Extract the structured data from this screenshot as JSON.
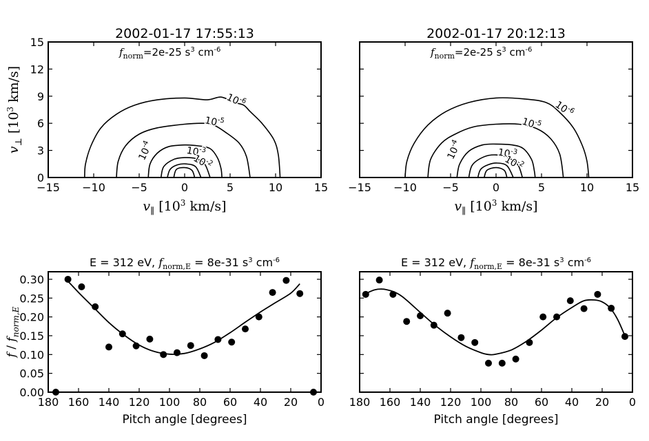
{
  "chart_data": [
    {
      "type": "contour",
      "title": "2002-01-17 17:55:13",
      "annotation": {
        "f": "f",
        "sub": "norm",
        "rest": "=2e-25 s",
        "exp1": "3",
        "rest2": " cm",
        "exp2": "-6"
      },
      "xlabel": {
        "sym": "v",
        "sub": "∥",
        "unit": "[10",
        "unit_exp": "3",
        "unit_rest": "  km/s]"
      },
      "ylabel": {
        "sym": "v",
        "sub": "⊥",
        "unit": "[10",
        "unit_exp": "3",
        "unit_rest": "  km/s]"
      },
      "xlim": [
        -15,
        15
      ],
      "ylim": [
        0,
        15
      ],
      "xticks": [
        "−15",
        "−10",
        "−5",
        "0",
        "5",
        "10",
        "15"
      ],
      "yticks": [
        "0",
        "3",
        "6",
        "9",
        "12",
        "15"
      ],
      "contours": [
        {
          "level": "10^-6",
          "base": "10",
          "exp": "-6",
          "points": [
            [
              -11.0,
              0
            ],
            [
              -10.9,
              1.5
            ],
            [
              -10.3,
              3.5
            ],
            [
              -9.2,
              5.5
            ],
            [
              -7.5,
              7.0
            ],
            [
              -5.5,
              8.0
            ],
            [
              -3.0,
              8.6
            ],
            [
              0.0,
              8.8
            ],
            [
              2.5,
              8.6
            ],
            [
              4.0,
              8.9
            ],
            [
              5.5,
              8.3
            ],
            [
              6.5,
              8.0
            ],
            [
              7.2,
              7.3
            ],
            [
              8.5,
              6.0
            ],
            [
              9.8,
              4.2
            ],
            [
              10.3,
              2.5
            ],
            [
              10.5,
              0
            ]
          ]
        },
        {
          "level": "10^-5",
          "base": "10",
          "exp": "-5",
          "points": [
            [
              -7.5,
              0
            ],
            [
              -7.3,
              1.8
            ],
            [
              -6.5,
              3.5
            ],
            [
              -5.0,
              4.8
            ],
            [
              -3.0,
              5.5
            ],
            [
              0.0,
              5.9
            ],
            [
              2.0,
              6.0
            ],
            [
              3.2,
              5.8
            ],
            [
              4.5,
              5.0
            ],
            [
              6.0,
              3.8
            ],
            [
              6.8,
              2.3
            ],
            [
              7.2,
              0
            ]
          ]
        },
        {
          "level": "10^-4",
          "base": "10",
          "exp": "-4",
          "points": [
            [
              -4.0,
              0
            ],
            [
              -3.8,
              1.5
            ],
            [
              -3.0,
              2.7
            ],
            [
              -1.8,
              3.4
            ],
            [
              0.0,
              3.6
            ],
            [
              1.5,
              3.5
            ],
            [
              2.8,
              3.2
            ],
            [
              3.6,
              2.2
            ],
            [
              4.0,
              1.0
            ],
            [
              4.1,
              0
            ]
          ]
        },
        {
          "level": "10^-3",
          "base": "10",
          "exp": "-3",
          "points": [
            [
              -2.6,
              0
            ],
            [
              -2.3,
              1.2
            ],
            [
              -1.2,
              2.0
            ],
            [
              0.0,
              2.2
            ],
            [
              1.2,
              2.1
            ],
            [
              2.2,
              1.5
            ],
            [
              2.8,
              0
            ]
          ]
        },
        {
          "level": "10^-2",
          "base": "10",
          "exp": "-2",
          "points": [
            [
              -1.9,
              0
            ],
            [
              -1.6,
              0.9
            ],
            [
              -0.8,
              1.4
            ],
            [
              0.2,
              1.5
            ],
            [
              1.2,
              1.2
            ],
            [
              1.8,
              0
            ]
          ]
        },
        {
          "level": "",
          "base": "",
          "exp": "",
          "points": [
            [
              -1.2,
              0
            ],
            [
              -0.9,
              0.9
            ],
            [
              0.0,
              1.1
            ],
            [
              0.8,
              0.8
            ],
            [
              1.1,
              0
            ]
          ]
        }
      ],
      "labels": [
        {
          "base": "10",
          "exp": "-6",
          "x": 5.5,
          "y": 8.2,
          "rot": 25
        },
        {
          "base": "10",
          "exp": "-5",
          "x": 3.2,
          "y": 5.8,
          "rot": 12
        },
        {
          "base": "10",
          "exp": "-4",
          "x": -4.0,
          "y": 2.8,
          "rot": -65
        },
        {
          "base": "10",
          "exp": "-3",
          "x": 1.2,
          "y": 2.5,
          "rot": 10
        },
        {
          "base": "10",
          "exp": "-2",
          "x": 1.8,
          "y": 1.4,
          "rot": 30
        }
      ]
    },
    {
      "type": "contour",
      "title": "2002-01-17 20:12:13",
      "annotation": {
        "f": "f",
        "sub": "norm",
        "rest": "=2e-25 s",
        "exp1": "3",
        "rest2": " cm",
        "exp2": "-6"
      },
      "xlabel": {
        "sym": "v",
        "sub": "∥",
        "unit": "[10",
        "unit_exp": "3",
        "unit_rest": "  km/s]"
      },
      "xlim": [
        -15,
        15
      ],
      "ylim": [
        0,
        15
      ],
      "xticks": [
        "−15",
        "−10",
        "−5",
        "0",
        "5",
        "10",
        "15"
      ],
      "contours": [
        {
          "level": "10^-6",
          "base": "10",
          "exp": "-6",
          "points": [
            [
              -10.0,
              0
            ],
            [
              -9.8,
              1.8
            ],
            [
              -9.0,
              3.8
            ],
            [
              -7.5,
              5.8
            ],
            [
              -5.5,
              7.3
            ],
            [
              -3.0,
              8.3
            ],
            [
              0.0,
              8.8
            ],
            [
              3.0,
              8.7
            ],
            [
              5.5,
              8.3
            ],
            [
              7.0,
              7.2
            ],
            [
              8.5,
              5.5
            ],
            [
              9.5,
              3.5
            ],
            [
              10.0,
              1.8
            ],
            [
              10.2,
              0
            ]
          ]
        },
        {
          "level": "10^-5",
          "base": "10",
          "exp": "-5",
          "points": [
            [
              -7.5,
              0
            ],
            [
              -7.2,
              2.0
            ],
            [
              -6.0,
              3.8
            ],
            [
              -4.5,
              4.8
            ],
            [
              -2.5,
              5.6
            ],
            [
              0.0,
              5.9
            ],
            [
              2.5,
              5.9
            ],
            [
              4.5,
              5.4
            ],
            [
              6.0,
              4.3
            ],
            [
              7.0,
              2.6
            ],
            [
              7.4,
              0
            ]
          ]
        },
        {
          "level": "10^-4",
          "base": "10",
          "exp": "-4",
          "points": [
            [
              -4.3,
              0
            ],
            [
              -4.0,
              1.5
            ],
            [
              -3.0,
              2.9
            ],
            [
              -1.5,
              3.6
            ],
            [
              0.0,
              3.7
            ],
            [
              1.8,
              3.6
            ],
            [
              3.0,
              3.2
            ],
            [
              3.9,
              2.0
            ],
            [
              4.2,
              0.8
            ],
            [
              4.3,
              0
            ]
          ]
        },
        {
          "level": "10^-3",
          "base": "10",
          "exp": "-3",
          "points": [
            [
              -3.0,
              0
            ],
            [
              -2.6,
              1.4
            ],
            [
              -1.3,
              2.3
            ],
            [
              0.0,
              2.5
            ],
            [
              1.3,
              2.2
            ],
            [
              2.4,
              1.4
            ],
            [
              2.9,
              0
            ]
          ]
        },
        {
          "level": "10^-2",
          "base": "10",
          "exp": "-2",
          "points": [
            [
              -2.0,
              0
            ],
            [
              -1.7,
              0.9
            ],
            [
              -0.9,
              1.4
            ],
            [
              0.1,
              1.6
            ],
            [
              1.2,
              1.3
            ],
            [
              1.9,
              0
            ]
          ]
        },
        {
          "level": "",
          "base": "",
          "exp": "",
          "points": [
            [
              -1.3,
              0
            ],
            [
              -1.0,
              0.8
            ],
            [
              0.0,
              1.1
            ],
            [
              0.9,
              0.8
            ],
            [
              1.2,
              0
            ]
          ]
        }
      ],
      "labels": [
        {
          "base": "10",
          "exp": "-6",
          "x": 7.3,
          "y": 7.3,
          "rot": 35
        },
        {
          "base": "10",
          "exp": "-5",
          "x": 3.8,
          "y": 5.6,
          "rot": 18
        },
        {
          "base": "10",
          "exp": "-4",
          "x": -4.3,
          "y": 2.9,
          "rot": -65
        },
        {
          "base": "10",
          "exp": "-3",
          "x": 1.2,
          "y": 2.3,
          "rot": 10
        },
        {
          "base": "10",
          "exp": "-2",
          "x": 1.8,
          "y": 1.3,
          "rot": 30
        }
      ]
    },
    {
      "type": "scatter",
      "title": {
        "pre": "E = 312 eV, ",
        "f": "f",
        "sub": "norm,E",
        "rest": " = 8e-31 s",
        "exp1": "3",
        "rest2": " cm",
        "exp2": "-6"
      },
      "xlabel": "Pitch angle [degrees]",
      "ylabel": {
        "f1": "f",
        "slash": " / ",
        "f2": "f",
        "sub": "norm,E"
      },
      "xlim": [
        180,
        0
      ],
      "ylim": [
        0,
        0.32
      ],
      "xticks": [
        "180",
        "160",
        "140",
        "120",
        "100",
        "80",
        "60",
        "40",
        "20",
        "0"
      ],
      "yticks": [
        "0.00",
        "0.05",
        "0.10",
        "0.15",
        "0.20",
        "0.25",
        "0.30"
      ],
      "points": [
        [
          175,
          0.0
        ],
        [
          167,
          0.3
        ],
        [
          158,
          0.28
        ],
        [
          149,
          0.227
        ],
        [
          140,
          0.12
        ],
        [
          131,
          0.155
        ],
        [
          122,
          0.123
        ],
        [
          113,
          0.141
        ],
        [
          104,
          0.1
        ],
        [
          95,
          0.105
        ],
        [
          86,
          0.124
        ],
        [
          77,
          0.097
        ],
        [
          68,
          0.14
        ],
        [
          59,
          0.133
        ],
        [
          50,
          0.168
        ],
        [
          41,
          0.2
        ],
        [
          32,
          0.265
        ],
        [
          23,
          0.297
        ],
        [
          14,
          0.262
        ],
        [
          5,
          0.0
        ]
      ],
      "fit": [
        [
          167,
          0.295
        ],
        [
          160,
          0.265
        ],
        [
          150,
          0.225
        ],
        [
          140,
          0.185
        ],
        [
          130,
          0.152
        ],
        [
          120,
          0.125
        ],
        [
          110,
          0.108
        ],
        [
          100,
          0.101
        ],
        [
          90,
          0.103
        ],
        [
          80,
          0.115
        ],
        [
          70,
          0.133
        ],
        [
          60,
          0.158
        ],
        [
          50,
          0.186
        ],
        [
          40,
          0.213
        ],
        [
          30,
          0.238
        ],
        [
          20,
          0.263
        ],
        [
          14,
          0.288
        ]
      ]
    },
    {
      "type": "scatter",
      "title": {
        "pre": "E = 312 eV, ",
        "f": "f",
        "sub": "norm,E",
        "rest": " = 8e-31 s",
        "exp1": "3",
        "rest2": " cm",
        "exp2": "-6"
      },
      "xlabel": "Pitch angle [degrees]",
      "xlim": [
        180,
        0
      ],
      "ylim": [
        0,
        0.32
      ],
      "xticks": [
        "180",
        "160",
        "140",
        "120",
        "100",
        "80",
        "60",
        "40",
        "20",
        "0"
      ],
      "points": [
        [
          176,
          0.26
        ],
        [
          167,
          0.298
        ],
        [
          158,
          0.26
        ],
        [
          149,
          0.188
        ],
        [
          140,
          0.203
        ],
        [
          131,
          0.178
        ],
        [
          122,
          0.21
        ],
        [
          113,
          0.145
        ],
        [
          104,
          0.132
        ],
        [
          95,
          0.077
        ],
        [
          86,
          0.077
        ],
        [
          77,
          0.088
        ],
        [
          68,
          0.132
        ],
        [
          59,
          0.2
        ],
        [
          50,
          0.2
        ],
        [
          41,
          0.243
        ],
        [
          32,
          0.222
        ],
        [
          23,
          0.26
        ],
        [
          14,
          0.223
        ],
        [
          5,
          0.148
        ]
      ],
      "fit": [
        [
          176,
          0.262
        ],
        [
          170,
          0.272
        ],
        [
          165,
          0.274
        ],
        [
          160,
          0.27
        ],
        [
          155,
          0.262
        ],
        [
          150,
          0.248
        ],
        [
          140,
          0.212
        ],
        [
          130,
          0.177
        ],
        [
          120,
          0.147
        ],
        [
          110,
          0.122
        ],
        [
          100,
          0.105
        ],
        [
          95,
          0.1
        ],
        [
          90,
          0.101
        ],
        [
          80,
          0.112
        ],
        [
          70,
          0.135
        ],
        [
          60,
          0.165
        ],
        [
          50,
          0.198
        ],
        [
          40,
          0.225
        ],
        [
          32,
          0.243
        ],
        [
          25,
          0.245
        ],
        [
          20,
          0.24
        ],
        [
          15,
          0.225
        ],
        [
          10,
          0.195
        ],
        [
          5,
          0.15
        ]
      ]
    }
  ]
}
